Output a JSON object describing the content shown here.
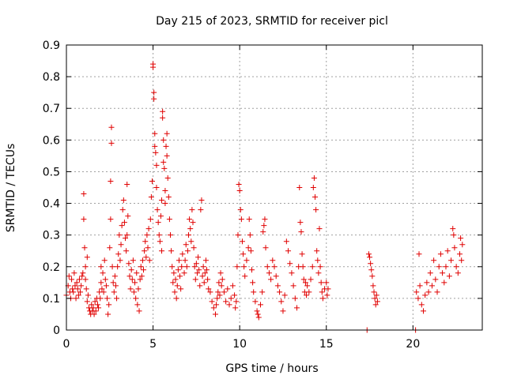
{
  "chart_data": {
    "type": "scatter",
    "title": "Day 215 of 2023, SRMTID for receiver picl",
    "xlabel": "GPS time / hours",
    "ylabel": "SRMTID / TECUs",
    "xlim": [
      0,
      24
    ],
    "ylim": [
      0,
      0.9
    ],
    "xticks": [
      0,
      5,
      10,
      15,
      20
    ],
    "xtick_labels": [
      "0",
      "5",
      "10",
      "15",
      "20"
    ],
    "yticks": [
      0,
      0.1,
      0.2,
      0.3,
      0.4,
      0.5,
      0.6,
      0.7,
      0.8,
      0.9
    ],
    "ytick_labels": [
      "0",
      "0.1",
      "0.2",
      "0.3",
      "0.4",
      "0.5",
      "0.6",
      "0.7",
      "0.8",
      "0.9"
    ],
    "grid": true,
    "marker": "+",
    "color": "#e00000",
    "series": [
      {
        "name": "SRMTID",
        "points": [
          [
            0.0,
            0.11
          ],
          [
            0.1,
            0.14
          ],
          [
            0.15,
            0.17
          ],
          [
            0.2,
            0.12
          ],
          [
            0.25,
            0.1
          ],
          [
            0.3,
            0.16
          ],
          [
            0.35,
            0.13
          ],
          [
            0.4,
            0.12
          ],
          [
            0.45,
            0.18
          ],
          [
            0.5,
            0.14
          ],
          [
            0.55,
            0.1
          ],
          [
            0.6,
            0.15
          ],
          [
            0.65,
            0.13
          ],
          [
            0.7,
            0.11
          ],
          [
            0.75,
            0.16
          ],
          [
            0.8,
            0.12
          ],
          [
            0.85,
            0.14
          ],
          [
            0.9,
            0.17
          ],
          [
            0.95,
            0.18
          ],
          [
            1.0,
            0.43
          ],
          [
            1.0,
            0.35
          ],
          [
            1.05,
            0.26
          ],
          [
            1.1,
            0.2
          ],
          [
            1.1,
            0.16
          ],
          [
            1.15,
            0.13
          ],
          [
            1.2,
            0.09
          ],
          [
            1.2,
            0.23
          ],
          [
            1.25,
            0.11
          ],
          [
            1.3,
            0.07
          ],
          [
            1.35,
            0.06
          ],
          [
            1.4,
            0.05
          ],
          [
            1.45,
            0.08
          ],
          [
            1.5,
            0.06
          ],
          [
            1.55,
            0.07
          ],
          [
            1.6,
            0.05
          ],
          [
            1.65,
            0.09
          ],
          [
            1.7,
            0.06
          ],
          [
            1.75,
            0.1
          ],
          [
            1.8,
            0.08
          ],
          [
            1.85,
            0.07
          ],
          [
            1.9,
            0.12
          ],
          [
            1.95,
            0.1
          ],
          [
            2.0,
            0.2
          ],
          [
            2.0,
            0.15
          ],
          [
            2.05,
            0.13
          ],
          [
            2.1,
            0.18
          ],
          [
            2.15,
            0.12
          ],
          [
            2.2,
            0.22
          ],
          [
            2.25,
            0.16
          ],
          [
            2.3,
            0.14
          ],
          [
            2.35,
            0.1
          ],
          [
            2.4,
            0.05
          ],
          [
            2.45,
            0.08
          ],
          [
            2.5,
            0.26
          ],
          [
            2.55,
            0.35
          ],
          [
            2.55,
            0.47
          ],
          [
            2.6,
            0.64
          ],
          [
            2.6,
            0.59
          ],
          [
            2.65,
            0.2
          ],
          [
            2.7,
            0.15
          ],
          [
            2.75,
            0.12
          ],
          [
            2.8,
            0.17
          ],
          [
            2.85,
            0.14
          ],
          [
            2.9,
            0.1
          ],
          [
            2.95,
            0.2
          ],
          [
            3.0,
            0.24
          ],
          [
            3.05,
            0.3
          ],
          [
            3.1,
            0.22
          ],
          [
            3.15,
            0.27
          ],
          [
            3.2,
            0.33
          ],
          [
            3.25,
            0.38
          ],
          [
            3.3,
            0.41
          ],
          [
            3.35,
            0.34
          ],
          [
            3.4,
            0.29
          ],
          [
            3.45,
            0.25
          ],
          [
            3.5,
            0.46
          ],
          [
            3.5,
            0.3
          ],
          [
            3.55,
            0.36
          ],
          [
            3.6,
            0.21
          ],
          [
            3.65,
            0.17
          ],
          [
            3.7,
            0.13
          ],
          [
            3.75,
            0.19
          ],
          [
            3.8,
            0.16
          ],
          [
            3.85,
            0.22
          ],
          [
            3.9,
            0.12
          ],
          [
            3.95,
            0.15
          ],
          [
            4.0,
            0.1
          ],
          [
            4.05,
            0.18
          ],
          [
            4.1,
            0.08
          ],
          [
            4.15,
            0.13
          ],
          [
            4.2,
            0.06
          ],
          [
            4.25,
            0.16
          ],
          [
            4.3,
            0.2
          ],
          [
            4.35,
            0.17
          ],
          [
            4.4,
            0.22
          ],
          [
            4.45,
            0.19
          ],
          [
            4.5,
            0.25
          ],
          [
            4.55,
            0.28
          ],
          [
            4.6,
            0.23
          ],
          [
            4.65,
            0.3
          ],
          [
            4.7,
            0.26
          ],
          [
            4.75,
            0.32
          ],
          [
            4.8,
            0.22
          ],
          [
            4.85,
            0.35
          ],
          [
            4.9,
            0.42
          ],
          [
            4.95,
            0.47
          ],
          [
            5.0,
            0.84
          ],
          [
            5.0,
            0.83
          ],
          [
            5.05,
            0.75
          ],
          [
            5.05,
            0.73
          ],
          [
            5.1,
            0.62
          ],
          [
            5.1,
            0.58
          ],
          [
            5.15,
            0.56
          ],
          [
            5.2,
            0.52
          ],
          [
            5.2,
            0.45
          ],
          [
            5.25,
            0.38
          ],
          [
            5.3,
            0.34
          ],
          [
            5.35,
            0.3
          ],
          [
            5.4,
            0.28
          ],
          [
            5.45,
            0.36
          ],
          [
            5.5,
            0.25
          ],
          [
            5.5,
            0.41
          ],
          [
            5.55,
            0.69
          ],
          [
            5.55,
            0.67
          ],
          [
            5.6,
            0.6
          ],
          [
            5.6,
            0.53
          ],
          [
            5.65,
            0.51
          ],
          [
            5.7,
            0.44
          ],
          [
            5.7,
            0.4
          ],
          [
            5.75,
            0.58
          ],
          [
            5.8,
            0.62
          ],
          [
            5.8,
            0.55
          ],
          [
            5.85,
            0.48
          ],
          [
            5.9,
            0.42
          ],
          [
            5.95,
            0.35
          ],
          [
            6.0,
            0.3
          ],
          [
            6.05,
            0.25
          ],
          [
            6.1,
            0.2
          ],
          [
            6.15,
            0.15
          ],
          [
            6.2,
            0.18
          ],
          [
            6.25,
            0.12
          ],
          [
            6.3,
            0.16
          ],
          [
            6.35,
            0.1
          ],
          [
            6.4,
            0.14
          ],
          [
            6.45,
            0.19
          ],
          [
            6.5,
            0.22
          ],
          [
            6.55,
            0.17
          ],
          [
            6.6,
            0.13
          ],
          [
            6.65,
            0.2
          ],
          [
            6.7,
            0.24
          ],
          [
            6.8,
            0.18
          ],
          [
            6.85,
            0.22
          ],
          [
            6.9,
            0.27
          ],
          [
            6.95,
            0.2
          ],
          [
            7.0,
            0.25
          ],
          [
            7.05,
            0.3
          ],
          [
            7.1,
            0.35
          ],
          [
            7.15,
            0.32
          ],
          [
            7.2,
            0.28
          ],
          [
            7.25,
            0.38
          ],
          [
            7.3,
            0.34
          ],
          [
            7.35,
            0.26
          ],
          [
            7.4,
            0.2
          ],
          [
            7.45,
            0.16
          ],
          [
            7.5,
            0.21
          ],
          [
            7.55,
            0.18
          ],
          [
            7.6,
            0.23
          ],
          [
            7.65,
            0.19
          ],
          [
            7.7,
            0.14
          ],
          [
            7.75,
            0.38
          ],
          [
            7.8,
            0.41
          ],
          [
            7.85,
            0.17
          ],
          [
            7.9,
            0.2
          ],
          [
            7.95,
            0.15
          ],
          [
            8.0,
            0.18
          ],
          [
            8.05,
            0.22
          ],
          [
            8.1,
            0.19
          ],
          [
            8.15,
            0.16
          ],
          [
            8.2,
            0.13
          ],
          [
            8.3,
            0.12
          ],
          [
            8.4,
            0.09
          ],
          [
            8.5,
            0.07
          ],
          [
            8.6,
            0.05
          ],
          [
            8.65,
            0.08
          ],
          [
            8.7,
            0.1
          ],
          [
            8.75,
            0.12
          ],
          [
            8.8,
            0.15
          ],
          [
            8.85,
            0.11
          ],
          [
            8.9,
            0.18
          ],
          [
            8.95,
            0.14
          ],
          [
            9.0,
            0.16
          ],
          [
            9.1,
            0.12
          ],
          [
            9.2,
            0.09
          ],
          [
            9.3,
            0.13
          ],
          [
            9.4,
            0.08
          ],
          [
            9.5,
            0.1
          ],
          [
            9.6,
            0.14
          ],
          [
            9.7,
            0.11
          ],
          [
            9.75,
            0.07
          ],
          [
            9.8,
            0.09
          ],
          [
            9.85,
            0.2
          ],
          [
            9.9,
            0.3
          ],
          [
            9.95,
            0.46
          ],
          [
            10.0,
            0.44
          ],
          [
            10.05,
            0.38
          ],
          [
            10.1,
            0.35
          ],
          [
            10.15,
            0.28
          ],
          [
            10.2,
            0.24
          ],
          [
            10.25,
            0.2
          ],
          [
            10.3,
            0.17
          ],
          [
            10.4,
            0.22
          ],
          [
            10.5,
            0.26
          ],
          [
            10.55,
            0.35
          ],
          [
            10.6,
            0.3
          ],
          [
            10.65,
            0.25
          ],
          [
            10.7,
            0.19
          ],
          [
            10.75,
            0.15
          ],
          [
            10.8,
            0.12
          ],
          [
            10.9,
            0.09
          ],
          [
            11.0,
            0.06
          ],
          [
            11.05,
            0.05
          ],
          [
            11.1,
            0.04
          ],
          [
            11.2,
            0.08
          ],
          [
            11.3,
            0.12
          ],
          [
            11.35,
            0.31
          ],
          [
            11.4,
            0.33
          ],
          [
            11.45,
            0.35
          ],
          [
            11.5,
            0.26
          ],
          [
            11.6,
            0.2
          ],
          [
            11.7,
            0.18
          ],
          [
            11.8,
            0.16
          ],
          [
            11.9,
            0.22
          ],
          [
            12.0,
            0.2
          ],
          [
            12.1,
            0.17
          ],
          [
            12.2,
            0.14
          ],
          [
            12.3,
            0.12
          ],
          [
            12.4,
            0.09
          ],
          [
            12.5,
            0.06
          ],
          [
            12.6,
            0.11
          ],
          [
            12.7,
            0.28
          ],
          [
            12.8,
            0.25
          ],
          [
            12.9,
            0.21
          ],
          [
            13.0,
            0.18
          ],
          [
            13.1,
            0.14
          ],
          [
            13.2,
            0.1
          ],
          [
            13.3,
            0.07
          ],
          [
            13.4,
            0.2
          ],
          [
            13.45,
            0.45
          ],
          [
            13.5,
            0.34
          ],
          [
            13.55,
            0.31
          ],
          [
            13.6,
            0.24
          ],
          [
            13.65,
            0.2
          ],
          [
            13.7,
            0.16
          ],
          [
            13.75,
            0.12
          ],
          [
            13.8,
            0.15
          ],
          [
            13.85,
            0.11
          ],
          [
            13.9,
            0.14
          ],
          [
            14.0,
            0.12
          ],
          [
            14.1,
            0.16
          ],
          [
            14.2,
            0.2
          ],
          [
            14.25,
            0.45
          ],
          [
            14.3,
            0.48
          ],
          [
            14.35,
            0.42
          ],
          [
            14.4,
            0.38
          ],
          [
            14.45,
            0.25
          ],
          [
            14.5,
            0.22
          ],
          [
            14.55,
            0.18
          ],
          [
            14.6,
            0.32
          ],
          [
            14.65,
            0.2
          ],
          [
            14.7,
            0.15
          ],
          [
            14.75,
            0.12
          ],
          [
            14.8,
            0.1
          ],
          [
            14.9,
            0.13
          ],
          [
            15.0,
            0.15
          ],
          [
            15.05,
            0.11
          ],
          [
            15.1,
            0.13
          ],
          [
            17.35,
            0.0
          ],
          [
            17.45,
            0.24
          ],
          [
            17.5,
            0.23
          ],
          [
            17.55,
            0.21
          ],
          [
            17.6,
            0.19
          ],
          [
            17.65,
            0.17
          ],
          [
            17.7,
            0.14
          ],
          [
            17.75,
            0.12
          ],
          [
            17.8,
            0.1
          ],
          [
            17.85,
            0.08
          ],
          [
            17.9,
            0.11
          ],
          [
            17.95,
            0.09
          ],
          [
            20.15,
            0.0
          ],
          [
            20.2,
            0.12
          ],
          [
            20.3,
            0.1
          ],
          [
            20.35,
            0.24
          ],
          [
            20.4,
            0.14
          ],
          [
            20.5,
            0.08
          ],
          [
            20.6,
            0.06
          ],
          [
            20.7,
            0.11
          ],
          [
            20.8,
            0.15
          ],
          [
            20.9,
            0.12
          ],
          [
            21.0,
            0.18
          ],
          [
            21.1,
            0.14
          ],
          [
            21.2,
            0.22
          ],
          [
            21.3,
            0.16
          ],
          [
            21.4,
            0.12
          ],
          [
            21.5,
            0.2
          ],
          [
            21.6,
            0.24
          ],
          [
            21.7,
            0.18
          ],
          [
            21.8,
            0.15
          ],
          [
            21.9,
            0.2
          ],
          [
            22.0,
            0.25
          ],
          [
            22.1,
            0.17
          ],
          [
            22.2,
            0.22
          ],
          [
            22.3,
            0.32
          ],
          [
            22.35,
            0.3
          ],
          [
            22.4,
            0.26
          ],
          [
            22.5,
            0.2
          ],
          [
            22.6,
            0.18
          ],
          [
            22.7,
            0.24
          ],
          [
            22.75,
            0.29
          ],
          [
            22.8,
            0.22
          ],
          [
            22.85,
            0.27
          ]
        ]
      }
    ]
  }
}
